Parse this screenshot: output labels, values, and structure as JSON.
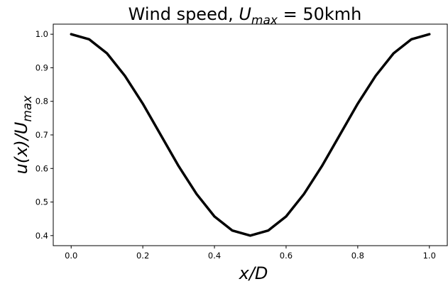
{
  "chart_data": {
    "type": "line",
    "title": {
      "prefix": "Wind speed, ",
      "var": "U",
      "sub": "max",
      "suffix": " = 50kmh"
    },
    "xlabel": "x/D",
    "ylabel": {
      "main": "u(x)/U",
      "sub": "max"
    },
    "xlim": [
      -0.05,
      1.05
    ],
    "ylim": [
      0.37,
      1.03
    ],
    "xticks": [
      0.0,
      0.2,
      0.4,
      0.6,
      0.8,
      1.0
    ],
    "xtick_labels": [
      "0.0",
      "0.2",
      "0.4",
      "0.6",
      "0.8",
      "1.0"
    ],
    "yticks": [
      0.4,
      0.5,
      0.6,
      0.7,
      0.8,
      0.9,
      1.0
    ],
    "ytick_labels": [
      "0.4",
      "0.5",
      "0.6",
      "0.7",
      "0.8",
      "0.9",
      "1.0"
    ],
    "grid": false,
    "series": [
      {
        "color": "#000000",
        "x": [
          0.0,
          0.05,
          0.1,
          0.15,
          0.2,
          0.25,
          0.3,
          0.35,
          0.4,
          0.45,
          0.5,
          0.55,
          0.6,
          0.65,
          0.7,
          0.75,
          0.8,
          0.85,
          0.9,
          0.95,
          1.0
        ],
        "y": [
          1.0,
          0.985,
          0.943,
          0.876,
          0.793,
          0.7,
          0.607,
          0.524,
          0.457,
          0.415,
          0.4,
          0.415,
          0.457,
          0.524,
          0.607,
          0.7,
          0.793,
          0.876,
          0.943,
          0.985,
          1.0
        ]
      }
    ]
  }
}
